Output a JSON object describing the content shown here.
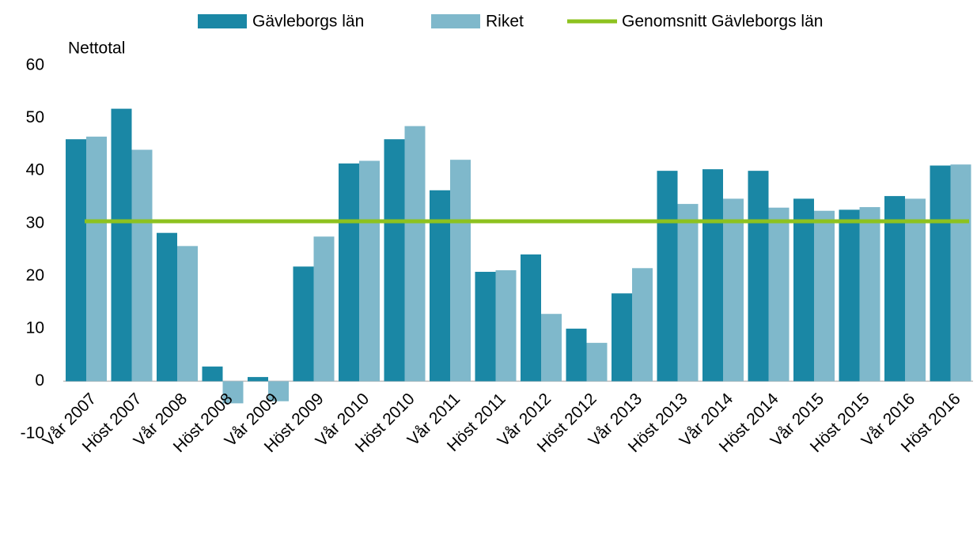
{
  "chart_data": {
    "type": "bar",
    "y_label": "Nettotal",
    "categories": [
      "Vår 2007",
      "Höst 2007",
      "Vår 2008",
      "Höst 2008",
      "Vår 2009",
      "Höst 2009",
      "Vår 2010",
      "Höst 2010",
      "Vår 2011",
      "Höst 2011",
      "Vår 2012",
      "Höst 2012",
      "Vår 2013",
      "Höst 2013",
      "Vår 2014",
      "Höst 2014",
      "Vår 2015",
      "Höst 2015",
      "Vår 2016",
      "Höst 2016"
    ],
    "series": [
      {
        "name": "Gävleborgs län",
        "color": "#1a87a5",
        "values": [
          46,
          51.8,
          28.2,
          2.8,
          0.8,
          21.8,
          41.4,
          46,
          36.3,
          20.8,
          24.1,
          10,
          16.7,
          40,
          40.3,
          40,
          34.7,
          32.6,
          35.2,
          41
        ]
      },
      {
        "name": "Riket",
        "color": "#7fb8cb",
        "values": [
          46.5,
          44,
          25.7,
          -4.2,
          -3.8,
          27.5,
          41.9,
          48.5,
          42.1,
          21.1,
          12.8,
          7.3,
          21.5,
          33.7,
          34.7,
          33,
          32.4,
          33.1,
          34.7,
          41.2
        ]
      }
    ],
    "average": {
      "name": "Genomsnitt Gävleborgs län",
      "color": "#8dc21f",
      "value": 30.4
    },
    "ylim": [
      -10,
      60
    ],
    "yticks": [
      -10,
      0,
      10,
      20,
      30,
      40,
      50,
      60
    ],
    "grid": false
  }
}
